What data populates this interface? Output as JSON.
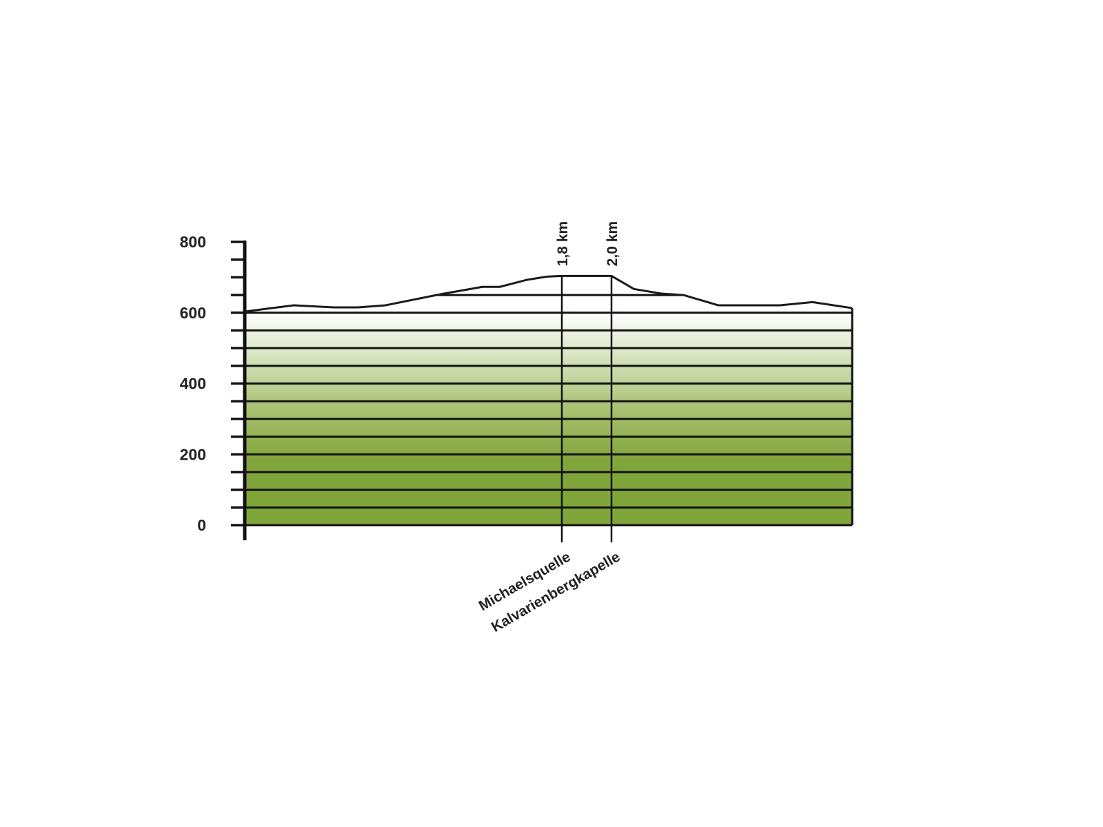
{
  "chart_data": {
    "type": "area",
    "title": "",
    "xlabel": "",
    "ylabel": "",
    "ylim": [
      0,
      800
    ],
    "y_ticks": [
      "0",
      "200",
      "400",
      "600",
      "800"
    ],
    "y_minor_step": 50,
    "grid": true,
    "fill_colors": {
      "top": "#ffffff",
      "bottom": "#7fa63a"
    },
    "line_color": "#1a1a1a",
    "profile": {
      "x_km": [
        0.52,
        0.72,
        0.88,
        0.98,
        1.09,
        1.31,
        1.48,
        1.55,
        1.66,
        1.74,
        1.8,
        2.0,
        2.09,
        2.2,
        2.29,
        2.43,
        2.54,
        2.68,
        2.81,
        2.97
      ],
      "elevation_m": [
        603,
        621,
        615,
        615,
        621,
        652,
        673,
        673,
        693,
        702,
        704,
        704,
        667,
        654,
        650,
        621,
        621,
        621,
        630,
        613
      ]
    },
    "markers": [
      {
        "km": 1.8,
        "distance_label": "1,8 km",
        "name": "Michaelsquelle"
      },
      {
        "km": 2.0,
        "distance_label": "2,0 km",
        "name": "Kalvarienbergkapelle"
      }
    ]
  }
}
